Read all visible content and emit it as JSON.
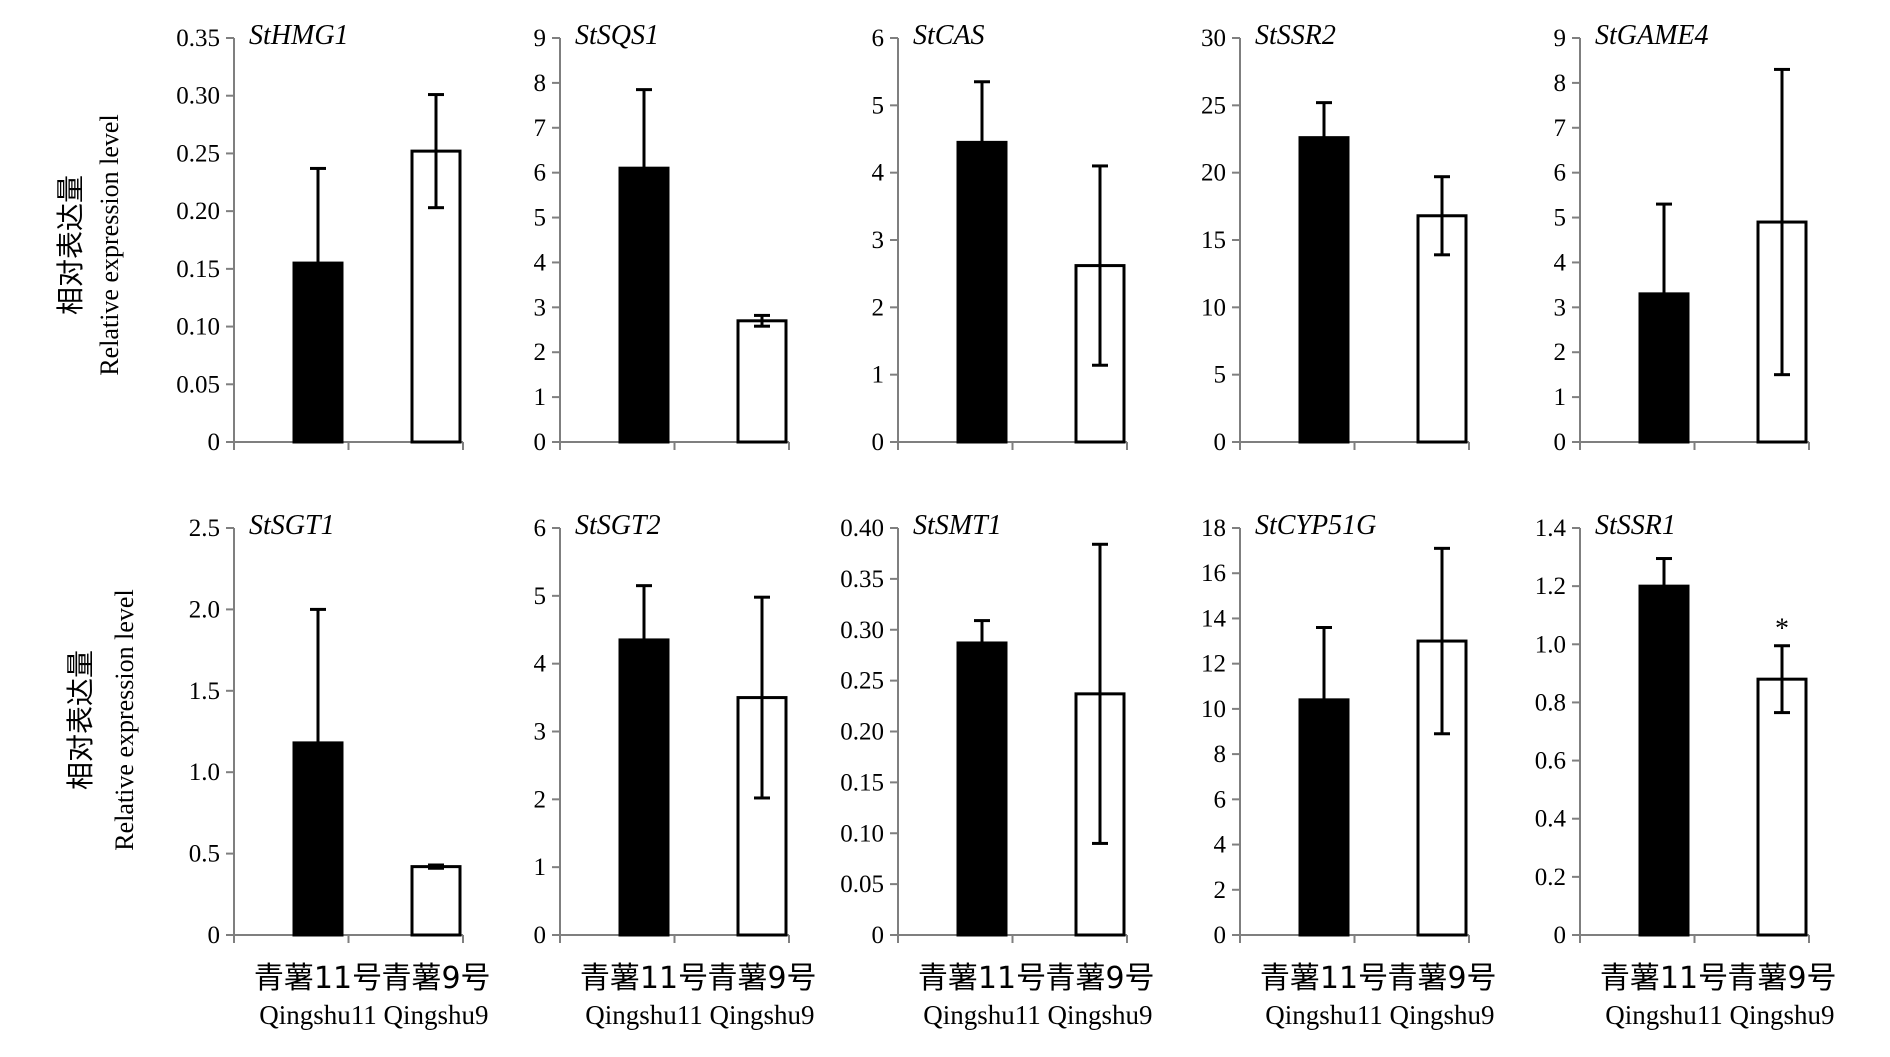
{
  "figure": {
    "ylabel_cn": "相对表达量",
    "ylabel_en": "Relative expression level",
    "categories_cn": [
      "青薯11号",
      "青薯9号"
    ],
    "categories_en": [
      "Qingshu11",
      "Qingshu9"
    ],
    "colors": {
      "Qingshu11": "#000000",
      "Qingshu9": "#ffffff",
      "axis": "#7f7f7f",
      "edge": "#000000"
    }
  },
  "chart_data": [
    {
      "type": "bar",
      "title": "StHMG1",
      "categories": [
        "Qingshu11",
        "Qingshu9"
      ],
      "values": [
        0.155,
        0.252
      ],
      "errors": [
        0.082,
        0.049
      ],
      "ylim": [
        0,
        0.35
      ],
      "yticks": [
        "0",
        "0.05",
        "0.10",
        "0.15",
        "0.20",
        "0.25",
        "0.30",
        "0.35"
      ],
      "annotations": [
        "",
        ""
      ]
    },
    {
      "type": "bar",
      "title": "StSQS1",
      "categories": [
        "Qingshu11",
        "Qingshu9"
      ],
      "values": [
        6.1,
        2.7
      ],
      "errors": [
        1.75,
        0.12
      ],
      "ylim": [
        0,
        9
      ],
      "yticks": [
        "0",
        "1",
        "2",
        "3",
        "4",
        "5",
        "6",
        "7",
        "8",
        "9"
      ],
      "annotations": [
        "",
        ""
      ]
    },
    {
      "type": "bar",
      "title": "StCAS",
      "categories": [
        "Qingshu11",
        "Qingshu9"
      ],
      "values": [
        4.45,
        2.62
      ],
      "errors": [
        0.9,
        1.48
      ],
      "ylim": [
        0,
        6
      ],
      "yticks": [
        "0",
        "1",
        "2",
        "3",
        "4",
        "5",
        "6"
      ],
      "annotations": [
        "",
        ""
      ]
    },
    {
      "type": "bar",
      "title": "StSSR2",
      "categories": [
        "Qingshu11",
        "Qingshu9"
      ],
      "values": [
        22.6,
        16.8
      ],
      "errors": [
        2.6,
        2.9
      ],
      "ylim": [
        0,
        30
      ],
      "yticks": [
        "0",
        "5",
        "10",
        "15",
        "20",
        "25",
        "30"
      ],
      "annotations": [
        "",
        ""
      ]
    },
    {
      "type": "bar",
      "title": "StGAME4",
      "categories": [
        "Qingshu11",
        "Qingshu9"
      ],
      "values": [
        3.3,
        4.9
      ],
      "errors": [
        2.0,
        3.4
      ],
      "ylim": [
        0,
        9
      ],
      "yticks": [
        "0",
        "1",
        "2",
        "3",
        "4",
        "5",
        "6",
        "7",
        "8",
        "9"
      ],
      "annotations": [
        "",
        ""
      ]
    },
    {
      "type": "bar",
      "title": "StSGT1",
      "categories": [
        "Qingshu11",
        "Qingshu9"
      ],
      "values": [
        1.18,
        0.42
      ],
      "errors": [
        0.82,
        0.01
      ],
      "ylim": [
        0,
        2.5
      ],
      "yticks": [
        "0",
        "0.5",
        "1.0",
        "1.5",
        "2.0",
        "2.5"
      ],
      "annotations": [
        "",
        ""
      ]
    },
    {
      "type": "bar",
      "title": "StSGT2",
      "categories": [
        "Qingshu11",
        "Qingshu9"
      ],
      "values": [
        4.35,
        3.5
      ],
      "errors": [
        0.8,
        1.48
      ],
      "ylim": [
        0,
        6
      ],
      "yticks": [
        "0",
        "1",
        "2",
        "3",
        "4",
        "5",
        "6"
      ],
      "annotations": [
        "",
        ""
      ]
    },
    {
      "type": "bar",
      "title": "StSMT1",
      "categories": [
        "Qingshu11",
        "Qingshu9"
      ],
      "values": [
        0.287,
        0.237
      ],
      "errors": [
        0.022,
        0.147
      ],
      "ylim": [
        0,
        0.4
      ],
      "yticks": [
        "0",
        "0.05",
        "0.10",
        "0.15",
        "0.20",
        "0.25",
        "0.30",
        "0.35",
        "0.40"
      ],
      "annotations": [
        "",
        ""
      ]
    },
    {
      "type": "bar",
      "title": "StCYP51G",
      "categories": [
        "Qingshu11",
        "Qingshu9"
      ],
      "values": [
        10.4,
        13.0
      ],
      "errors": [
        3.2,
        4.1
      ],
      "ylim": [
        0,
        18
      ],
      "yticks": [
        "0",
        "2",
        "4",
        "6",
        "8",
        "10",
        "12",
        "14",
        "16",
        "18"
      ],
      "annotations": [
        "",
        ""
      ]
    },
    {
      "type": "bar",
      "title": "StSSR1",
      "categories": [
        "Qingshu11",
        "Qingshu9"
      ],
      "values": [
        1.2,
        0.88
      ],
      "errors": [
        0.095,
        0.115
      ],
      "ylim": [
        0,
        1.4
      ],
      "yticks": [
        "0",
        "0.2",
        "0.4",
        "0.6",
        "0.8",
        "1.0",
        "1.2",
        "1.4"
      ],
      "annotations": [
        "",
        "*"
      ]
    }
  ]
}
